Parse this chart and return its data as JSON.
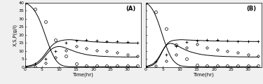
{
  "figsize": [
    3.75,
    1.2
  ],
  "dpi": 100,
  "background_color": "#f0f0f0",
  "plot_bg": "#ffffff",
  "xlim": [
    0,
    34
  ],
  "ylim": [
    0,
    40
  ],
  "xticks": [
    0,
    5,
    10,
    15,
    20,
    25,
    30
  ],
  "yticks": [
    0,
    5,
    10,
    15,
    20,
    25,
    30,
    35,
    40
  ],
  "xlabel": "Time(hr)",
  "ylabel": "X,S,P(g/l)",
  "panel_labels": [
    "(A)",
    "(B)"
  ],
  "time_exp": [
    0,
    3,
    6,
    9,
    12,
    15,
    18,
    21,
    24,
    27,
    30,
    33
  ],
  "S_exp_A": [
    40,
    36,
    28,
    17,
    7,
    2,
    1,
    0.8,
    0.8,
    0.8,
    0.8,
    0.8
  ],
  "X_exp_A": [
    0.5,
    2,
    5,
    10,
    15,
    16.5,
    17,
    16.5,
    16,
    16,
    15.5,
    15
  ],
  "P_exp_A": [
    0.2,
    0.5,
    2.5,
    6,
    10.5,
    13,
    11.5,
    10.5,
    10,
    9,
    8,
    7
  ],
  "S_exp_B": [
    40,
    34,
    24,
    14,
    5,
    1.5,
    0.8,
    0.8,
    0.8,
    0.8,
    0.8,
    0.8
  ],
  "X_exp_B": [
    0.5,
    3.5,
    8,
    13,
    15.5,
    16.5,
    17,
    17,
    16.5,
    16,
    16,
    16
  ],
  "P_exp_B": [
    0.2,
    1,
    4,
    8,
    12,
    14.5,
    12,
    11,
    10,
    9,
    8,
    7
  ],
  "time_sim": [
    0,
    0.5,
    1,
    1.5,
    2,
    2.5,
    3,
    3.5,
    4,
    4.5,
    5,
    5.5,
    6,
    6.5,
    7,
    7.5,
    8,
    8.5,
    9,
    9.5,
    10,
    10.5,
    11,
    11.5,
    12,
    12.5,
    13,
    13.5,
    14,
    14.5,
    15,
    15.5,
    16,
    16.5,
    17,
    17.5,
    18,
    18.5,
    19,
    19.5,
    20,
    20.5,
    21,
    21.5,
    22,
    22.5,
    23,
    23.5,
    24,
    24.5,
    25,
    25.5,
    26,
    26.5,
    27,
    27.5,
    28,
    28.5,
    29,
    29.5,
    30,
    30.5,
    31,
    31.5,
    32,
    32.5,
    33
  ],
  "S_sim_A": [
    40,
    39.5,
    38.8,
    38,
    37,
    35.8,
    34.3,
    32.5,
    30.4,
    28,
    25.3,
    22.4,
    19.4,
    16.4,
    13.5,
    10.8,
    8.4,
    6.3,
    4.6,
    3.2,
    2.2,
    1.5,
    1.0,
    0.7,
    0.5,
    0.4,
    0.3,
    0.3,
    0.3,
    0.3,
    0.3,
    0.3,
    0.3,
    0.3,
    0.3,
    0.3,
    0.3,
    0.3,
    0.3,
    0.3,
    0.3,
    0.3,
    0.3,
    0.3,
    0.3,
    0.3,
    0.3,
    0.3,
    0.3,
    0.3,
    0.3,
    0.3,
    0.3,
    0.3,
    0.3,
    0.3,
    0.3,
    0.3,
    0.3,
    0.3,
    0.3,
    0.3,
    0.3,
    0.3,
    0.3,
    0.3,
    0.3
  ],
  "X_sim_A": [
    0.5,
    0.6,
    0.8,
    1.0,
    1.3,
    1.7,
    2.2,
    2.8,
    3.6,
    4.6,
    5.7,
    7.0,
    8.4,
    9.8,
    11.2,
    12.5,
    13.6,
    14.5,
    15.2,
    15.7,
    16.1,
    16.4,
    16.6,
    16.8,
    16.9,
    17.0,
    17.0,
    17.0,
    16.9,
    16.8,
    16.7,
    16.6,
    16.5,
    16.4,
    16.3,
    16.2,
    16.1,
    16.0,
    15.9,
    15.8,
    15.7,
    15.7,
    15.6,
    15.6,
    15.5,
    15.5,
    15.4,
    15.4,
    15.3,
    15.3,
    15.3,
    15.2,
    15.2,
    15.2,
    15.1,
    15.1,
    15.1,
    15.0,
    15.0,
    15.0,
    15.0,
    15.0,
    14.9,
    14.9,
    14.9,
    14.9,
    14.9
  ],
  "P_sim_A": [
    0.2,
    0.3,
    0.4,
    0.5,
    0.7,
    1.0,
    1.4,
    1.9,
    2.6,
    3.5,
    4.6,
    5.8,
    7.1,
    8.4,
    9.6,
    10.7,
    11.5,
    12.1,
    12.5,
    12.7,
    12.8,
    12.7,
    12.5,
    12.2,
    11.8,
    11.4,
    11.0,
    10.6,
    10.2,
    9.8,
    9.4,
    9.1,
    8.8,
    8.5,
    8.3,
    8.0,
    7.8,
    7.6,
    7.5,
    7.3,
    7.2,
    7.1,
    7.0,
    6.9,
    6.8,
    6.8,
    6.7,
    6.7,
    6.6,
    6.6,
    6.5,
    6.5,
    6.5,
    6.4,
    6.4,
    6.4,
    6.4,
    6.3,
    6.3,
    6.3,
    6.3,
    6.3,
    6.3,
    6.3,
    6.3,
    6.3,
    6.3
  ],
  "S_sim_B": [
    40,
    39.3,
    38.4,
    37.2,
    35.7,
    33.8,
    31.5,
    28.8,
    25.8,
    22.6,
    19.3,
    16.1,
    13.1,
    10.3,
    8.0,
    6.0,
    4.4,
    3.2,
    2.3,
    1.6,
    1.1,
    0.8,
    0.6,
    0.5,
    0.4,
    0.3,
    0.3,
    0.3,
    0.3,
    0.3,
    0.3,
    0.3,
    0.3,
    0.3,
    0.3,
    0.3,
    0.3,
    0.3,
    0.3,
    0.3,
    0.3,
    0.3,
    0.3,
    0.3,
    0.3,
    0.3,
    0.3,
    0.3,
    0.3,
    0.3,
    0.3,
    0.3,
    0.3,
    0.3,
    0.3,
    0.3,
    0.3,
    0.3,
    0.3,
    0.3,
    0.3,
    0.3,
    0.3,
    0.3,
    0.3,
    0.3,
    0.3
  ],
  "X_sim_B": [
    0.5,
    0.7,
    1.0,
    1.4,
    1.9,
    2.7,
    3.7,
    5.1,
    6.7,
    8.5,
    10.4,
    12.2,
    13.7,
    14.9,
    15.7,
    16.2,
    16.5,
    16.7,
    16.8,
    16.9,
    17.0,
    17.0,
    17.0,
    16.9,
    16.9,
    16.8,
    16.8,
    16.7,
    16.7,
    16.6,
    16.6,
    16.5,
    16.5,
    16.5,
    16.4,
    16.4,
    16.4,
    16.3,
    16.3,
    16.3,
    16.2,
    16.2,
    16.2,
    16.2,
    16.1,
    16.1,
    16.1,
    16.1,
    16.1,
    16.0,
    16.0,
    16.0,
    16.0,
    16.0,
    16.0,
    16.0,
    16.0,
    15.9,
    15.9,
    15.9,
    15.9,
    15.9,
    15.9,
    15.9,
    15.9,
    15.9,
    15.9
  ],
  "P_sim_B": [
    0.2,
    0.3,
    0.5,
    0.8,
    1.2,
    1.9,
    2.9,
    4.3,
    6.1,
    8.1,
    10.2,
    12.0,
    13.4,
    14.3,
    14.7,
    14.7,
    14.5,
    14.1,
    13.6,
    13.0,
    12.5,
    11.9,
    11.4,
    10.9,
    10.4,
    10.0,
    9.6,
    9.3,
    9.0,
    8.7,
    8.5,
    8.2,
    8.0,
    7.8,
    7.7,
    7.5,
    7.4,
    7.3,
    7.2,
    7.1,
    7.0,
    6.9,
    6.9,
    6.8,
    6.8,
    6.7,
    6.7,
    6.6,
    6.6,
    6.6,
    6.5,
    6.5,
    6.5,
    6.5,
    6.4,
    6.4,
    6.4,
    6.4,
    6.4,
    6.4,
    6.3,
    6.3,
    6.3,
    6.3,
    6.3,
    6.3,
    6.3
  ],
  "line_color": "black",
  "linewidth": 0.7,
  "tick_fontsize": 4.5,
  "label_fontsize": 5,
  "panel_label_fontsize": 6
}
